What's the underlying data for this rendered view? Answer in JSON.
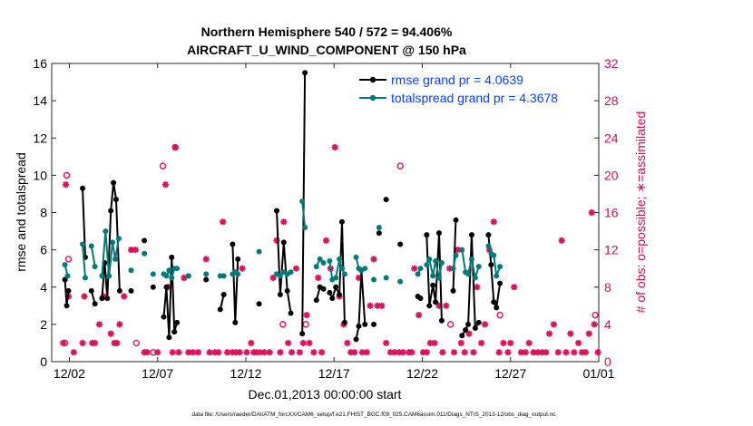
{
  "chart_data": {
    "type": "line",
    "title_line1": "Northern Hemisphere 540 / 572 = 94.406%",
    "title_line2": "AIRCRAFT_U_WIND_COMPONENT @ 150 hPa",
    "xlabel": "Dec.01,2013 00:00:00 start",
    "ylabel_left": "rmse and totalspread",
    "ylabel_right": "# of obs: o=possible; ∗=assimilated",
    "footer": "data file: /Users/raeder/DAI/ATM_forcXX/CAM6_setup/f.e21.FHIST_BGC.f09_025.CAM6assim.011/Diags_NTrS_2013-12/obs_diag_output.nc",
    "xlim": [
      1,
      32
    ],
    "ylim_left": [
      0,
      16
    ],
    "ylim_right": [
      0,
      32
    ],
    "x_ticks": [
      {
        "x": 2,
        "label": "12/02"
      },
      {
        "x": 7,
        "label": "12/07"
      },
      {
        "x": 12,
        "label": "12/12"
      },
      {
        "x": 17,
        "label": "12/17"
      },
      {
        "x": 22,
        "label": "12/22"
      },
      {
        "x": 27,
        "label": "12/27"
      },
      {
        "x": 32,
        "label": "01/01"
      }
    ],
    "y_ticks_left": [
      0,
      2,
      4,
      6,
      8,
      10,
      12,
      14,
      16
    ],
    "y_ticks_right": [
      0,
      4,
      8,
      12,
      16,
      20,
      24,
      28,
      32
    ],
    "colors": {
      "rmse": "#000000",
      "totalspread": "#007a78",
      "obs": "#d8135d",
      "legend_text": "#0a44e8",
      "right_axis": "#cc0f55"
    },
    "series": [
      {
        "name": "rmse grand pr = 4.0639",
        "segments": [
          [
            [
              1.75,
              4.4
            ],
            [
              1.85,
              3.0
            ],
            [
              1.95,
              3.8
            ]
          ],
          [
            [
              2.75,
              9.3
            ],
            [
              2.9,
              5.6
            ]
          ],
          [
            [
              3.25,
              3.8
            ],
            [
              3.45,
              3.1
            ]
          ],
          [
            [
              3.85,
              3.4
            ],
            [
              4.0,
              5.3
            ],
            [
              4.15,
              3.4
            ],
            [
              4.35,
              8.1
            ],
            [
              4.5,
              9.6
            ],
            [
              4.65,
              8.7
            ],
            [
              4.85,
              3.8
            ]
          ],
          [
            [
              5.5,
              3.8
            ]
          ],
          [
            [
              6.25,
              6.5
            ]
          ],
          [
            [
              6.75,
              4.0
            ]
          ],
          [
            [
              7.35,
              2.4
            ],
            [
              7.5,
              4.0
            ],
            [
              7.65,
              1.3
            ],
            [
              7.8,
              5.6
            ],
            [
              7.95,
              1.6
            ],
            [
              8.1,
              2.1
            ]
          ],
          [
            [
              8.75,
              4.6
            ]
          ],
          [
            [
              9.75,
              4.4
            ]
          ],
          [
            [
              10.55,
              2.8
            ],
            [
              10.75,
              3.6
            ]
          ],
          [
            [
              11.25,
              6.3
            ],
            [
              11.4,
              2.1
            ],
            [
              11.55,
              5.5
            ]
          ],
          [
            [
              12.75,
              3.1
            ]
          ],
          [
            [
              13.75,
              8.1
            ],
            [
              13.95,
              3.6
            ],
            [
              14.15,
              6.4
            ],
            [
              14.35,
              3.8
            ],
            [
              14.55,
              2.6
            ]
          ],
          [
            [
              15.2,
              1.5
            ],
            [
              15.35,
              15.5
            ]
          ],
          [
            [
              16.0,
              3.3
            ],
            [
              16.2,
              4.0
            ],
            [
              16.4,
              3.9
            ]
          ],
          [
            [
              16.75,
              3.7
            ],
            [
              16.9,
              3.4
            ],
            [
              17.1,
              4.0
            ],
            [
              17.3,
              3.6
            ],
            [
              17.45,
              7.5
            ],
            [
              17.6,
              2.1
            ]
          ],
          [
            [
              18.25,
              1.2
            ],
            [
              18.4,
              1.9
            ],
            [
              18.55,
              4.9
            ],
            [
              18.75,
              2.0
            ]
          ],
          [
            [
              19.25,
              2.0
            ]
          ],
          [
            [
              19.55,
              6.9
            ]
          ],
          [
            [
              19.95,
              8.7
            ]
          ],
          [
            [
              20.75,
              6.3
            ]
          ],
          [
            [
              21.75,
              3.5
            ],
            [
              21.9,
              3.4
            ]
          ],
          [
            [
              22.25,
              6.8
            ],
            [
              22.4,
              3.0
            ],
            [
              22.6,
              4.1
            ],
            [
              22.75,
              3.2
            ],
            [
              22.95,
              6.9
            ],
            [
              23.1,
              2.2
            ]
          ],
          [
            [
              23.75,
              3.8
            ],
            [
              23.9,
              7.6
            ]
          ],
          [
            [
              24.25,
              1.4
            ],
            [
              24.45,
              1.7
            ],
            [
              24.6,
              2.0
            ],
            [
              24.8,
              6.8
            ],
            [
              25.0,
              1.8
            ],
            [
              25.2,
              2.1
            ]
          ],
          [
            [
              25.75,
              6.8
            ],
            [
              25.9,
              5.2
            ],
            [
              26.05,
              3.2
            ],
            [
              26.2,
              2.9
            ],
            [
              26.4,
              4.2
            ]
          ]
        ]
      },
      {
        "name": "totalspread grand pr = 4.3678",
        "segments": [
          [
            [
              1.75,
              5.2
            ],
            [
              1.9,
              4.6
            ]
          ],
          [
            [
              2.75,
              6.3
            ],
            [
              2.9,
              4.5
            ]
          ],
          [
            [
              3.25,
              6.2
            ],
            [
              3.45,
              5.1
            ]
          ],
          [
            [
              3.85,
              4.6
            ],
            [
              4.05,
              7.0
            ],
            [
              4.25,
              4.6
            ],
            [
              4.45,
              6.4
            ],
            [
              4.6,
              5.5
            ],
            [
              4.8,
              6.6
            ]
          ],
          [
            [
              5.5,
              4.9
            ]
          ],
          [
            [
              6.25,
              5.8
            ]
          ],
          [
            [
              6.75,
              4.7
            ]
          ],
          [
            [
              7.35,
              4.7
            ],
            [
              7.5,
              4.6
            ],
            [
              7.65,
              4.9
            ],
            [
              7.8,
              4.5
            ],
            [
              7.95,
              5.0
            ],
            [
              8.1,
              5.0
            ]
          ],
          [
            [
              8.75,
              4.6
            ]
          ],
          [
            [
              9.75,
              4.7
            ]
          ],
          [
            [
              10.55,
              4.6
            ],
            [
              10.75,
              4.6
            ]
          ],
          [
            [
              11.25,
              4.7
            ],
            [
              11.4,
              4.8
            ],
            [
              11.55,
              4.7
            ]
          ],
          [
            [
              12.75,
              5.9
            ]
          ],
          [
            [
              13.75,
              4.7
            ],
            [
              13.95,
              4.6
            ],
            [
              14.15,
              4.8
            ],
            [
              14.35,
              4.7
            ],
            [
              14.55,
              4.8
            ]
          ],
          [
            [
              15.2,
              8.6
            ],
            [
              15.35,
              7.2
            ]
          ],
          [
            [
              16.0,
              5.1
            ],
            [
              16.2,
              5.5
            ],
            [
              16.4,
              5.3
            ]
          ],
          [
            [
              16.75,
              5.4
            ],
            [
              16.9,
              4.4
            ],
            [
              17.1,
              4.5
            ],
            [
              17.3,
              5.5
            ],
            [
              17.45,
              5.0
            ],
            [
              17.6,
              4.7
            ]
          ],
          [
            [
              18.25,
              5.6
            ],
            [
              18.4,
              5.0
            ],
            [
              18.55,
              4.9
            ],
            [
              18.75,
              5.0
            ]
          ],
          [
            [
              19.25,
              4.4
            ]
          ],
          [
            [
              19.55,
              7.2
            ]
          ],
          [
            [
              19.95,
              4.5
            ]
          ],
          [
            [
              20.75,
              4.3
            ]
          ],
          [
            [
              21.75,
              4.7
            ],
            [
              21.9,
              5.0
            ]
          ],
          [
            [
              22.25,
              5.2
            ],
            [
              22.4,
              5.5
            ],
            [
              22.6,
              4.6
            ],
            [
              22.75,
              5.4
            ],
            [
              22.95,
              4.5
            ],
            [
              23.1,
              5.3
            ]
          ],
          [
            [
              23.75,
              5.0
            ],
            [
              23.9,
              5.7
            ]
          ],
          [
            [
              24.25,
              6.0
            ],
            [
              24.45,
              4.8
            ],
            [
              24.6,
              4.7
            ],
            [
              24.8,
              5.5
            ],
            [
              25.0,
              4.5
            ],
            [
              25.2,
              5.1
            ]
          ],
          [
            [
              25.75,
              6.2
            ],
            [
              25.9,
              5.8
            ],
            [
              26.05,
              5.7
            ],
            [
              26.2,
              4.6
            ],
            [
              26.4,
              5.1
            ]
          ]
        ]
      }
    ],
    "obs_possible": [
      [
        1.75,
        2
      ],
      [
        1.85,
        20
      ],
      [
        1.95,
        11
      ],
      [
        5.8,
        2
      ],
      [
        6.75,
        1
      ],
      [
        7.3,
        21
      ],
      [
        8.0,
        23
      ],
      [
        14.1,
        4
      ],
      [
        15.4,
        4
      ],
      [
        20.75,
        21
      ],
      [
        23.6,
        4
      ],
      [
        26.4,
        5
      ],
      [
        31.8,
        5
      ]
    ],
    "obs_assimilated": [
      [
        1.65,
        2
      ],
      [
        1.8,
        19
      ],
      [
        1.95,
        7
      ],
      [
        2.25,
        1
      ],
      [
        2.75,
        2
      ],
      [
        2.85,
        7
      ],
      [
        3.3,
        2
      ],
      [
        3.45,
        2
      ],
      [
        3.7,
        4
      ],
      [
        3.95,
        7
      ],
      [
        4.35,
        3
      ],
      [
        4.55,
        2
      ],
      [
        4.7,
        2
      ],
      [
        4.85,
        4
      ],
      [
        5.1,
        7
      ],
      [
        5.5,
        12
      ],
      [
        5.75,
        12
      ],
      [
        6.25,
        1
      ],
      [
        6.4,
        1
      ],
      [
        7.0,
        1
      ],
      [
        7.45,
        19
      ],
      [
        7.6,
        8
      ],
      [
        7.85,
        1
      ],
      [
        8.0,
        23
      ],
      [
        8.2,
        1
      ],
      [
        8.5,
        9
      ],
      [
        8.75,
        1
      ],
      [
        9.0,
        1
      ],
      [
        9.3,
        1
      ],
      [
        9.75,
        11
      ],
      [
        9.95,
        1
      ],
      [
        10.25,
        1
      ],
      [
        10.45,
        1
      ],
      [
        10.7,
        15
      ],
      [
        10.95,
        1
      ],
      [
        11.25,
        1
      ],
      [
        11.45,
        1
      ],
      [
        11.65,
        1
      ],
      [
        11.8,
        10
      ],
      [
        12.05,
        1
      ],
      [
        12.3,
        2
      ],
      [
        12.45,
        1
      ],
      [
        12.6,
        1
      ],
      [
        12.8,
        1
      ],
      [
        13.05,
        1
      ],
      [
        13.35,
        1
      ],
      [
        13.55,
        9
      ],
      [
        13.75,
        13
      ],
      [
        13.95,
        1
      ],
      [
        14.15,
        15
      ],
      [
        14.4,
        2
      ],
      [
        14.6,
        1
      ],
      [
        14.85,
        10
      ],
      [
        15.05,
        1
      ],
      [
        15.25,
        2
      ],
      [
        15.45,
        5
      ],
      [
        15.6,
        2
      ],
      [
        15.85,
        1
      ],
      [
        16.1,
        9
      ],
      [
        16.3,
        1
      ],
      [
        16.55,
        13
      ],
      [
        16.8,
        10
      ],
      [
        17.05,
        23
      ],
      [
        17.3,
        7
      ],
      [
        17.55,
        4
      ],
      [
        17.75,
        2
      ],
      [
        17.95,
        1
      ],
      [
        18.15,
        1
      ],
      [
        18.4,
        9
      ],
      [
        18.6,
        1
      ],
      [
        18.85,
        1
      ],
      [
        19.05,
        6
      ],
      [
        19.25,
        11
      ],
      [
        19.45,
        6
      ],
      [
        19.7,
        6
      ],
      [
        19.95,
        2
      ],
      [
        20.2,
        1
      ],
      [
        20.45,
        1
      ],
      [
        20.7,
        1
      ],
      [
        20.9,
        1
      ],
      [
        21.25,
        1
      ],
      [
        21.4,
        1
      ],
      [
        21.55,
        10
      ],
      [
        21.8,
        5
      ],
      [
        22.05,
        1
      ],
      [
        22.25,
        1
      ],
      [
        22.45,
        2
      ],
      [
        22.7,
        2
      ],
      [
        22.95,
        6
      ],
      [
        23.15,
        1
      ],
      [
        23.35,
        6
      ],
      [
        23.55,
        10
      ],
      [
        23.8,
        1
      ],
      [
        24.0,
        12
      ],
      [
        24.2,
        2
      ],
      [
        24.4,
        1
      ],
      [
        24.65,
        3
      ],
      [
        24.9,
        1
      ],
      [
        25.1,
        8
      ],
      [
        25.35,
        2
      ],
      [
        25.55,
        4
      ],
      [
        25.8,
        12
      ],
      [
        26.05,
        15
      ],
      [
        26.35,
        1
      ],
      [
        26.6,
        2
      ],
      [
        26.85,
        1
      ],
      [
        27.0,
        2
      ],
      [
        27.2,
        8
      ],
      [
        27.6,
        1
      ],
      [
        27.85,
        1
      ],
      [
        28.05,
        2
      ],
      [
        28.3,
        1
      ],
      [
        28.55,
        1
      ],
      [
        28.8,
        1
      ],
      [
        29.0,
        1
      ],
      [
        29.2,
        3
      ],
      [
        29.45,
        4
      ],
      [
        29.7,
        1
      ],
      [
        29.9,
        13
      ],
      [
        30.15,
        1
      ],
      [
        30.4,
        3
      ],
      [
        30.6,
        1
      ],
      [
        30.85,
        2
      ],
      [
        31.05,
        1
      ],
      [
        31.25,
        1
      ],
      [
        31.45,
        3
      ],
      [
        31.6,
        16
      ],
      [
        31.75,
        4
      ],
      [
        31.95,
        1
      ]
    ]
  }
}
